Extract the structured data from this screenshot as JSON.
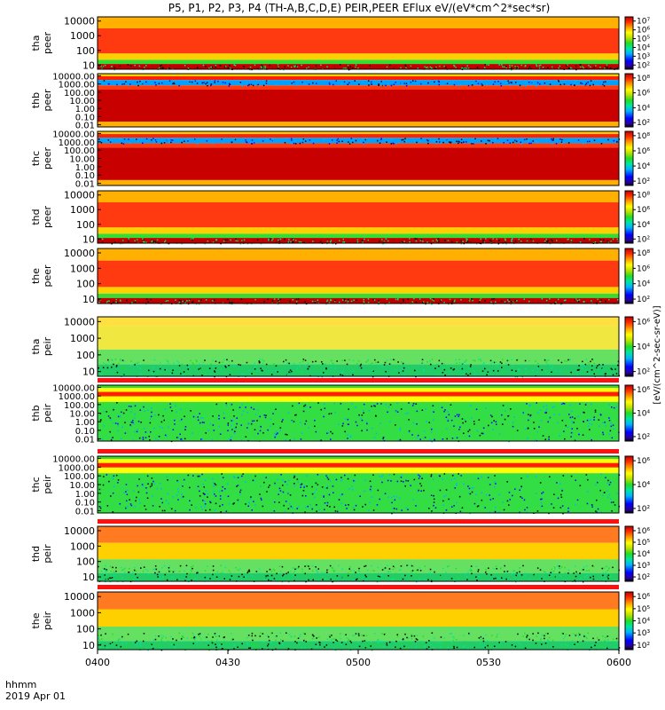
{
  "chart_data": {
    "type": "heatmap",
    "title": "P5, P1, P2, P3, P4 (TH-A,B,C,D,E) PEIR,PEER EFlux eV/(eV*cm^2*sec*sr)",
    "x_tick_labels": [
      "0400",
      "0430",
      "0500",
      "0530",
      "0600"
    ],
    "x_axis_labels": [
      "hhmm",
      "2019 Apr 01"
    ],
    "colorbar_label": "[eV/(cm^2-sec-sr-eV)]",
    "colorscale": [
      "#000000",
      "#2a00a0",
      "#0000ff",
      "#00b4ff",
      "#00e6a0",
      "#22dd22",
      "#bbe000",
      "#ffff00",
      "#ffa000",
      "#ff3000",
      "#c00000"
    ],
    "panels": [
      {
        "probe": "tha",
        "instrument": "peer",
        "y_ticks": [
          "10",
          "100",
          "1000",
          "10000"
        ],
        "cbar_ticks": [
          "10²",
          "10³",
          "10⁴",
          "10⁵",
          "10⁶",
          "10⁷"
        ],
        "cbar_range_log": [
          2,
          7
        ]
      },
      {
        "probe": "thb",
        "instrument": "peer",
        "y_ticks": [
          "0.01",
          "0.10",
          "1.00",
          "10.00",
          "100.00",
          "1000.00",
          "10000.00"
        ],
        "cbar_ticks": [
          "10²",
          "10⁴",
          "10⁶",
          "10⁸"
        ],
        "cbar_range_log": [
          2,
          8
        ]
      },
      {
        "probe": "thc",
        "instrument": "peer",
        "y_ticks": [
          "0.01",
          "0.10",
          "1.00",
          "10.00",
          "100.00",
          "1000.00",
          "10000.00"
        ],
        "cbar_ticks": [
          "10²",
          "10⁴",
          "10⁶",
          "10⁸"
        ],
        "cbar_range_log": [
          2,
          8
        ]
      },
      {
        "probe": "thd",
        "instrument": "peer",
        "y_ticks": [
          "10",
          "100",
          "1000",
          "10000"
        ],
        "cbar_ticks": [
          "10²",
          "10⁴",
          "10⁶",
          "10⁸"
        ],
        "cbar_range_log": [
          2,
          8
        ]
      },
      {
        "probe": "the",
        "instrument": "peer",
        "y_ticks": [
          "10",
          "100",
          "1000",
          "10000"
        ],
        "cbar_ticks": [
          "10²",
          "10⁴",
          "10⁶",
          "10⁸"
        ],
        "cbar_range_log": [
          2,
          8
        ]
      },
      {
        "probe": "tha",
        "instrument": "peir",
        "y_ticks": [
          "10",
          "100",
          "1000",
          "10000"
        ],
        "cbar_ticks": [
          "10²",
          "10⁴",
          "10⁶"
        ],
        "cbar_range_log": [
          2,
          7
        ]
      },
      {
        "probe": "thb",
        "instrument": "peir",
        "y_ticks": [
          "0.01",
          "0.10",
          "1.00",
          "10.00",
          "100.00",
          "1000.00",
          "10000.00"
        ],
        "cbar_ticks": [
          "10²",
          "10⁴",
          "10⁶"
        ],
        "cbar_range_log": [
          2,
          7
        ]
      },
      {
        "probe": "thc",
        "instrument": "peir",
        "y_ticks": [
          "0.01",
          "0.10",
          "1.00",
          "10.00",
          "100.00",
          "1000.00",
          "10000.00"
        ],
        "cbar_ticks": [
          "10²",
          "10⁴",
          "10⁶"
        ],
        "cbar_range_log": [
          2,
          7
        ]
      },
      {
        "probe": "thd",
        "instrument": "peir",
        "y_ticks": [
          "10",
          "100",
          "1000",
          "10000"
        ],
        "cbar_ticks": [
          "10²",
          "10³",
          "10⁴",
          "10⁵",
          "10⁶"
        ],
        "cbar_range_log": [
          2,
          7
        ]
      },
      {
        "probe": "the",
        "instrument": "peir",
        "y_ticks": [
          "10",
          "100",
          "1000",
          "10000"
        ],
        "cbar_ticks": [
          "10²",
          "10³",
          "10⁴",
          "10⁵",
          "10⁶"
        ],
        "cbar_range_log": [
          2,
          7
        ]
      }
    ]
  }
}
